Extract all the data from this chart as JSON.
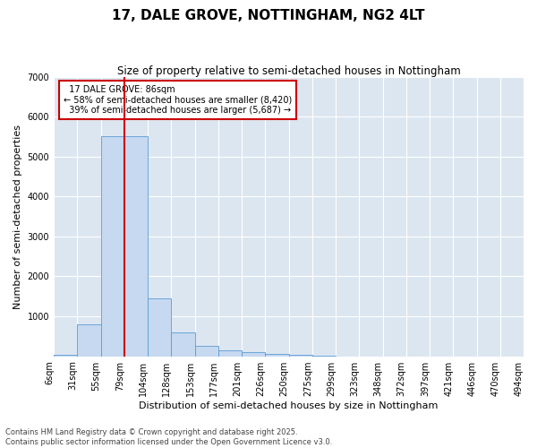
{
  "title": "17, DALE GROVE, NOTTINGHAM, NG2 4LT",
  "subtitle": "Size of property relative to semi-detached houses in Nottingham",
  "xlabel": "Distribution of semi-detached houses by size in Nottingham",
  "ylabel": "Number of semi-detached properties",
  "property_label": "17 DALE GROVE: 86sqm",
  "pct_smaller": 58,
  "count_smaller": 8420,
  "pct_larger": 39,
  "count_larger": 5687,
  "bin_edges": [
    6,
    31,
    55,
    79,
    104,
    128,
    153,
    177,
    201,
    226,
    250,
    275,
    299,
    323,
    348,
    372,
    397,
    421,
    446,
    470,
    494
  ],
  "bin_labels": [
    "6sqm",
    "31sqm",
    "55sqm",
    "79sqm",
    "104sqm",
    "128sqm",
    "153sqm",
    "177sqm",
    "201sqm",
    "226sqm",
    "250sqm",
    "275sqm",
    "299sqm",
    "323sqm",
    "348sqm",
    "372sqm",
    "397sqm",
    "421sqm",
    "446sqm",
    "470sqm",
    "494sqm"
  ],
  "values": [
    30,
    800,
    5500,
    5500,
    1450,
    600,
    260,
    150,
    100,
    60,
    40,
    5,
    0,
    0,
    0,
    0,
    0,
    0,
    0,
    0
  ],
  "bar_color": "#c6d9f0",
  "bar_edge_color": "#5b9bd5",
  "vline_color": "#cc0000",
  "vline_x": 3.0,
  "annotation_box_color": "#cc0000",
  "background_color": "#dce6f1",
  "footer_line1": "Contains HM Land Registry data © Crown copyright and database right 2025.",
  "footer_line2": "Contains public sector information licensed under the Open Government Licence v3.0.",
  "ylim": [
    0,
    7000
  ],
  "yticks": [
    0,
    1000,
    2000,
    3000,
    4000,
    5000,
    6000,
    7000
  ],
  "title_fontsize": 11,
  "subtitle_fontsize": 8.5,
  "axis_label_fontsize": 8,
  "tick_fontsize": 7,
  "annot_fontsize": 7,
  "footer_fontsize": 6
}
